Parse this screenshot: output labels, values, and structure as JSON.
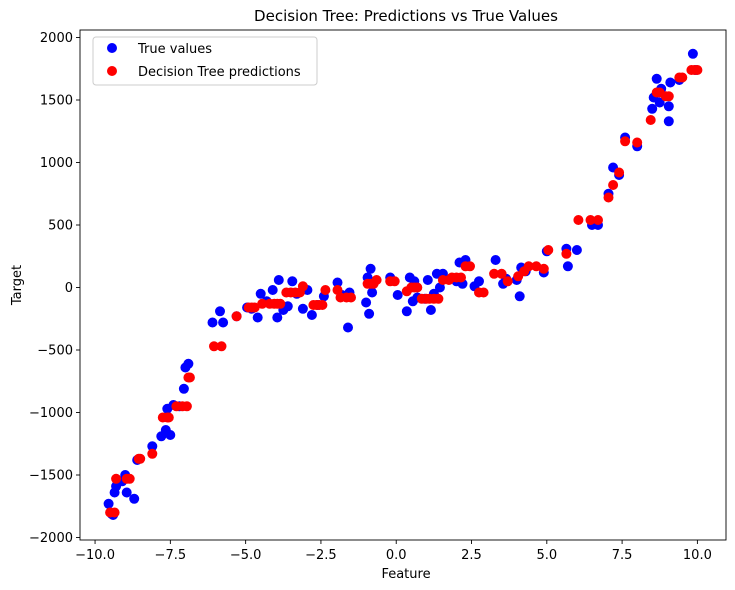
{
  "chart_data": {
    "type": "scatter",
    "title": "Decision Tree: Predictions vs True Values",
    "xlabel": "Feature",
    "ylabel": "Target",
    "xlim": [
      -10.5,
      10.95
    ],
    "ylim": [
      -2020,
      2060
    ],
    "xticks": [
      -10.0,
      -7.5,
      -5.0,
      -2.5,
      0.0,
      2.5,
      5.0,
      7.5,
      10.0
    ],
    "xtick_labels": [
      "−10.0",
      "−7.5",
      "−5.0",
      "−2.5",
      "0.0",
      "2.5",
      "5.0",
      "7.5",
      "10.0"
    ],
    "yticks": [
      -2000,
      -1500,
      -1000,
      -500,
      0,
      500,
      1000,
      1500,
      2000
    ],
    "ytick_labels": [
      "−2000",
      "−1500",
      "−1000",
      "−500",
      "0",
      "500",
      "1000",
      "1500",
      "2000"
    ],
    "grid": false,
    "legend_position": "top-left",
    "series": [
      {
        "name": "True values",
        "color": "#0000ff",
        "points": [
          [
            -9.55,
            -1730
          ],
          [
            -9.45,
            -1810
          ],
          [
            -9.4,
            -1820
          ],
          [
            -9.35,
            -1640
          ],
          [
            -9.3,
            -1590
          ],
          [
            -9.1,
            -1550
          ],
          [
            -9.0,
            -1500
          ],
          [
            -8.95,
            -1640
          ],
          [
            -8.7,
            -1690
          ],
          [
            -8.6,
            -1380
          ],
          [
            -8.1,
            -1270
          ],
          [
            -7.8,
            -1190
          ],
          [
            -7.65,
            -1140
          ],
          [
            -7.6,
            -970
          ],
          [
            -7.5,
            -1180
          ],
          [
            -7.4,
            -940
          ],
          [
            -7.2,
            -950
          ],
          [
            -7.05,
            -810
          ],
          [
            -7.0,
            -640
          ],
          [
            -6.9,
            -610
          ],
          [
            -6.1,
            -280
          ],
          [
            -5.85,
            -190
          ],
          [
            -5.75,
            -280
          ],
          [
            -5.3,
            -230
          ],
          [
            -4.95,
            -160
          ],
          [
            -4.8,
            -170
          ],
          [
            -4.6,
            -240
          ],
          [
            -4.5,
            -50
          ],
          [
            -4.3,
            -110
          ],
          [
            -4.1,
            -20
          ],
          [
            -3.95,
            -240
          ],
          [
            -3.9,
            60
          ],
          [
            -3.75,
            -180
          ],
          [
            -3.6,
            -150
          ],
          [
            -3.45,
            50
          ],
          [
            -3.3,
            -50
          ],
          [
            -3.1,
            -170
          ],
          [
            -2.95,
            -20
          ],
          [
            -2.8,
            -220
          ],
          [
            -2.6,
            -140
          ],
          [
            -2.4,
            -70
          ],
          [
            -1.95,
            40
          ],
          [
            -1.8,
            -60
          ],
          [
            -1.6,
            -320
          ],
          [
            -1.55,
            -40
          ],
          [
            -1.0,
            -120
          ],
          [
            -0.95,
            80
          ],
          [
            -0.9,
            -210
          ],
          [
            -0.85,
            150
          ],
          [
            -0.8,
            -40
          ],
          [
            -0.2,
            80
          ],
          [
            0.05,
            -60
          ],
          [
            0.35,
            -190
          ],
          [
            0.45,
            80
          ],
          [
            0.55,
            -110
          ],
          [
            0.6,
            50
          ],
          [
            0.7,
            -80
          ],
          [
            0.95,
            -90
          ],
          [
            1.05,
            60
          ],
          [
            1.15,
            -180
          ],
          [
            1.25,
            -50
          ],
          [
            1.35,
            110
          ],
          [
            1.45,
            0
          ],
          [
            1.55,
            110
          ],
          [
            1.8,
            70
          ],
          [
            2.0,
            50
          ],
          [
            2.1,
            200
          ],
          [
            2.2,
            30
          ],
          [
            2.3,
            220
          ],
          [
            2.6,
            10
          ],
          [
            2.75,
            50
          ],
          [
            3.3,
            220
          ],
          [
            3.55,
            30
          ],
          [
            3.65,
            70
          ],
          [
            4.0,
            60
          ],
          [
            4.1,
            -70
          ],
          [
            4.15,
            160
          ],
          [
            4.3,
            130
          ],
          [
            4.9,
            120
          ],
          [
            5.0,
            290
          ],
          [
            5.65,
            310
          ],
          [
            5.7,
            170
          ],
          [
            6.0,
            300
          ],
          [
            6.5,
            500
          ],
          [
            6.7,
            500
          ],
          [
            7.05,
            750
          ],
          [
            7.2,
            960
          ],
          [
            7.4,
            900
          ],
          [
            7.6,
            1200
          ],
          [
            8.0,
            1130
          ],
          [
            8.5,
            1430
          ],
          [
            8.55,
            1520
          ],
          [
            8.65,
            1670
          ],
          [
            8.75,
            1480
          ],
          [
            8.8,
            1590
          ],
          [
            9.05,
            1330
          ],
          [
            9.05,
            1450
          ],
          [
            9.1,
            1640
          ],
          [
            9.4,
            1660
          ],
          [
            9.85,
            1870
          ],
          [
            9.95,
            1740
          ]
        ]
      },
      {
        "name": "Decision Tree predictions",
        "color": "#ff0000",
        "points": [
          [
            -9.5,
            -1800
          ],
          [
            -9.35,
            -1800
          ],
          [
            -9.3,
            -1530
          ],
          [
            -8.95,
            -1530
          ],
          [
            -8.85,
            -1530
          ],
          [
            -8.55,
            -1370
          ],
          [
            -8.5,
            -1370
          ],
          [
            -8.1,
            -1330
          ],
          [
            -7.75,
            -1040
          ],
          [
            -7.6,
            -1040
          ],
          [
            -7.55,
            -1040
          ],
          [
            -7.3,
            -950
          ],
          [
            -7.1,
            -950
          ],
          [
            -6.95,
            -950
          ],
          [
            -6.9,
            -720
          ],
          [
            -6.85,
            -720
          ],
          [
            -6.05,
            -470
          ],
          [
            -5.8,
            -470
          ],
          [
            -5.3,
            -230
          ],
          [
            -4.9,
            -160
          ],
          [
            -4.8,
            -160
          ],
          [
            -4.7,
            -160
          ],
          [
            -4.45,
            -130
          ],
          [
            -4.2,
            -130
          ],
          [
            -4.05,
            -130
          ],
          [
            -3.95,
            -130
          ],
          [
            -3.85,
            -130
          ],
          [
            -3.65,
            -40
          ],
          [
            -3.5,
            -40
          ],
          [
            -3.35,
            -40
          ],
          [
            -3.2,
            -40
          ],
          [
            -3.1,
            10
          ],
          [
            -2.75,
            -140
          ],
          [
            -2.65,
            -140
          ],
          [
            -2.55,
            -140
          ],
          [
            -2.45,
            -140
          ],
          [
            -2.35,
            -20
          ],
          [
            -1.95,
            -20
          ],
          [
            -1.85,
            -80
          ],
          [
            -1.65,
            -80
          ],
          [
            -1.5,
            -80
          ],
          [
            -0.95,
            30
          ],
          [
            -0.85,
            30
          ],
          [
            -0.75,
            30
          ],
          [
            -0.65,
            60
          ],
          [
            -0.2,
            50
          ],
          [
            -0.05,
            50
          ],
          [
            0.35,
            -30
          ],
          [
            0.5,
            0
          ],
          [
            0.6,
            0
          ],
          [
            0.7,
            0
          ],
          [
            0.85,
            -90
          ],
          [
            1.0,
            -90
          ],
          [
            1.1,
            -90
          ],
          [
            1.25,
            -90
          ],
          [
            1.4,
            -90
          ],
          [
            1.55,
            60
          ],
          [
            1.75,
            60
          ],
          [
            1.85,
            80
          ],
          [
            2.0,
            80
          ],
          [
            2.15,
            80
          ],
          [
            2.3,
            170
          ],
          [
            2.45,
            170
          ],
          [
            2.75,
            -40
          ],
          [
            2.9,
            -40
          ],
          [
            3.25,
            110
          ],
          [
            3.5,
            110
          ],
          [
            3.7,
            50
          ],
          [
            4.05,
            90
          ],
          [
            4.25,
            130
          ],
          [
            4.4,
            170
          ],
          [
            4.65,
            170
          ],
          [
            4.9,
            150
          ],
          [
            5.05,
            300
          ],
          [
            5.65,
            270
          ],
          [
            6.05,
            540
          ],
          [
            6.45,
            540
          ],
          [
            6.7,
            540
          ],
          [
            7.05,
            720
          ],
          [
            7.2,
            820
          ],
          [
            7.4,
            920
          ],
          [
            7.6,
            1170
          ],
          [
            8.0,
            1160
          ],
          [
            8.45,
            1340
          ],
          [
            8.65,
            1560
          ],
          [
            8.75,
            1560
          ],
          [
            8.95,
            1530
          ],
          [
            9.05,
            1530
          ],
          [
            9.4,
            1680
          ],
          [
            9.5,
            1680
          ],
          [
            9.8,
            1740
          ],
          [
            9.9,
            1740
          ],
          [
            10.0,
            1740
          ]
        ]
      }
    ]
  }
}
